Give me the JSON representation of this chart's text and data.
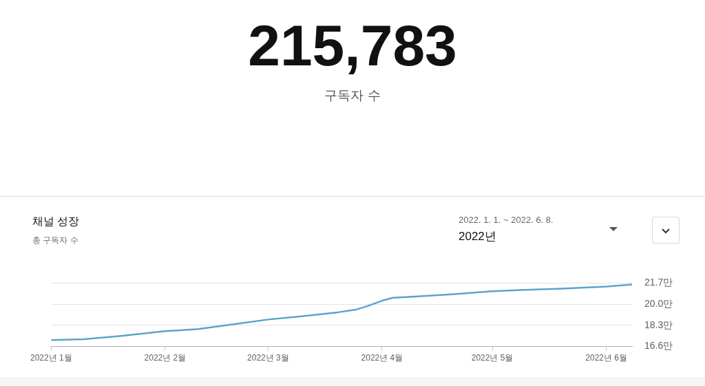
{
  "chart_data": {
    "type": "line",
    "title": "채널 성장",
    "subtitle": "총 구독자 수",
    "annotations": [
      "215,783",
      "구독자 수",
      "2022. 1. 1. ~ 2022. 6. 8.",
      "2022년"
    ],
    "x": [
      "2022-01-01",
      "2022-01-10",
      "2022-01-20",
      "2022-02-01",
      "2022-02-10",
      "2022-02-20",
      "2022-03-01",
      "2022-03-10",
      "2022-03-20",
      "2022-03-25",
      "2022-03-28",
      "2022-04-01",
      "2022-04-04",
      "2022-04-10",
      "2022-04-20",
      "2022-05-01",
      "2022-05-10",
      "2022-05-20",
      "2022-06-01",
      "2022-06-08"
    ],
    "series": [
      {
        "color": "#5ba3cc",
        "values": [
          17.12,
          17.18,
          17.45,
          17.83,
          18.0,
          18.4,
          18.77,
          19.02,
          19.35,
          19.57,
          19.85,
          20.28,
          20.52,
          20.62,
          20.8,
          21.04,
          21.15,
          21.25,
          21.42,
          21.58
        ]
      }
    ],
    "xlim": [
      "2022-01-01",
      "2022-06-08"
    ],
    "xticks": [
      {
        "value": "2022-01-01",
        "label": "2022년 1월"
      },
      {
        "value": "2022-02-01",
        "label": "2022년 2월"
      },
      {
        "value": "2022-03-01",
        "label": "2022년 3월"
      },
      {
        "value": "2022-04-01",
        "label": "2022년 4월"
      },
      {
        "value": "2022-05-01",
        "label": "2022년 5월"
      },
      {
        "value": "2022-06-01",
        "label": "2022년 6월"
      }
    ],
    "ylim": [
      16.6,
      21.7
    ],
    "yticks": [
      {
        "value": 16.6,
        "label": "16.6만"
      },
      {
        "value": 18.3,
        "label": "18.3만"
      },
      {
        "value": 20.0,
        "label": "20.0만"
      },
      {
        "value": 21.7,
        "label": "21.7만"
      }
    ],
    "grid": "y"
  }
}
